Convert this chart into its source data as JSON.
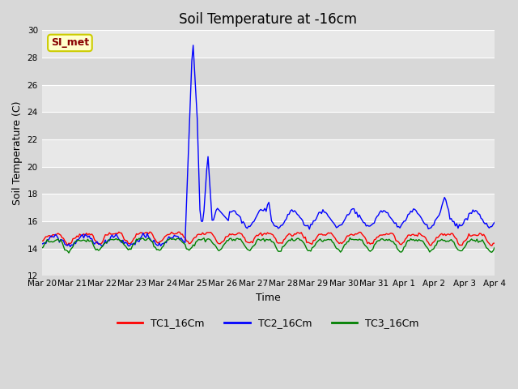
{
  "title": "Soil Temperature at -16cm",
  "xlabel": "Time",
  "ylabel": "Soil Temperature (C)",
  "ylim": [
    12,
    30
  ],
  "yticks": [
    12,
    14,
    16,
    18,
    20,
    22,
    24,
    26,
    28,
    30
  ],
  "bg_color": "#d8d8d8",
  "band_light": "#e8e8e8",
  "band_dark": "#d8d8d8",
  "grid_color": "#ffffff",
  "legend_labels": [
    "TC1_16Cm",
    "TC2_16Cm",
    "TC3_16Cm"
  ],
  "legend_colors": [
    "red",
    "blue",
    "green"
  ],
  "watermark_text": "SI_met",
  "watermark_bg": "#ffffcc",
  "watermark_border": "#cccc00",
  "watermark_text_color": "#880000",
  "n_points": 336,
  "days_total": 15,
  "xtick_labels": [
    "Mar 20",
    "Mar 21",
    "Mar 22",
    "Mar 23",
    "Mar 24",
    "Mar 25",
    "Mar 26",
    "Mar 27",
    "Mar 28",
    "Mar 29",
    "Mar 30",
    "Mar 31",
    "Apr 1",
    "Apr 2",
    "Apr 3",
    "Apr 4"
  ]
}
